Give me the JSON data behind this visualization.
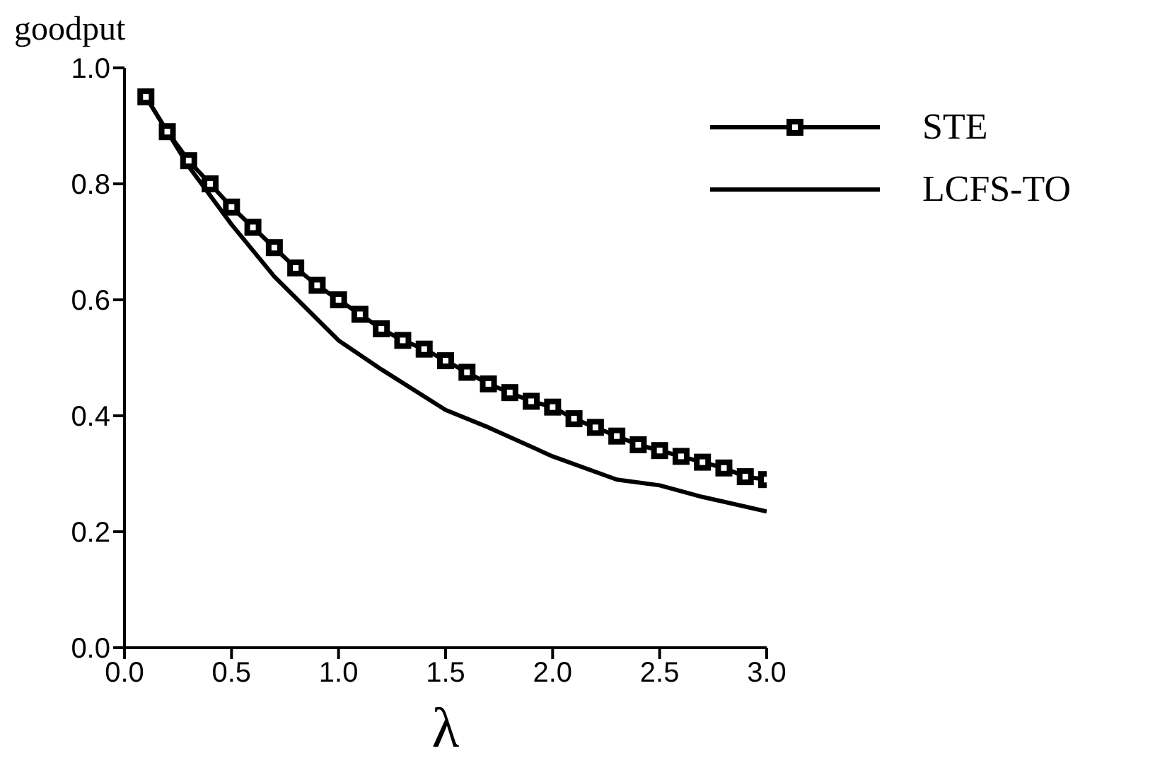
{
  "chart_data": {
    "type": "line",
    "ylabel": "goodput",
    "xlabel": "λ",
    "xlim": [
      0,
      3
    ],
    "ylim": [
      0,
      1
    ],
    "xticks": [
      {
        "value": 0,
        "label": "0.0"
      },
      0.5,
      {
        "value": 1,
        "label": "1.0"
      },
      1.5,
      {
        "value": 2,
        "label": "2.0"
      },
      2.5,
      {
        "value": 3,
        "label": "3.0"
      }
    ],
    "yticks": [
      {
        "value": 0,
        "label": "0.0"
      },
      0.2,
      0.4,
      0.6,
      0.8,
      {
        "value": 1,
        "label": "1.0"
      }
    ],
    "legend": "top right",
    "grid": false,
    "line_style": "solid",
    "series": [
      {
        "name": "STE",
        "color": "#000000",
        "marker": "square",
        "x": [
          0.1,
          0.2,
          0.3,
          0.4,
          0.5,
          0.6,
          0.7,
          0.8,
          0.9,
          1.0,
          1.1,
          1.2,
          1.3,
          1.4,
          1.5,
          1.6,
          1.7,
          1.8,
          1.9,
          2.0,
          2.1,
          2.2,
          2.3,
          2.4,
          2.5,
          2.6,
          2.7,
          2.8,
          2.9,
          3.0
        ],
        "values": [
          0.95,
          0.89,
          0.84,
          0.8,
          0.76,
          0.725,
          0.69,
          0.655,
          0.625,
          0.6,
          0.575,
          0.55,
          0.53,
          0.515,
          0.495,
          0.475,
          0.455,
          0.44,
          0.425,
          0.415,
          0.395,
          0.38,
          0.365,
          0.35,
          0.34,
          0.33,
          0.32,
          0.31,
          0.295,
          0.29
        ]
      },
      {
        "name": "LCFS-TO",
        "color": "#000000",
        "marker": "none",
        "x": [
          0.1,
          0.3,
          0.5,
          0.7,
          1.0,
          1.2,
          1.5,
          1.7,
          2.0,
          2.3,
          2.5,
          2.7,
          3.0
        ],
        "values": [
          0.95,
          0.83,
          0.73,
          0.64,
          0.53,
          0.48,
          0.41,
          0.38,
          0.33,
          0.29,
          0.28,
          0.26,
          0.235
        ]
      }
    ]
  }
}
